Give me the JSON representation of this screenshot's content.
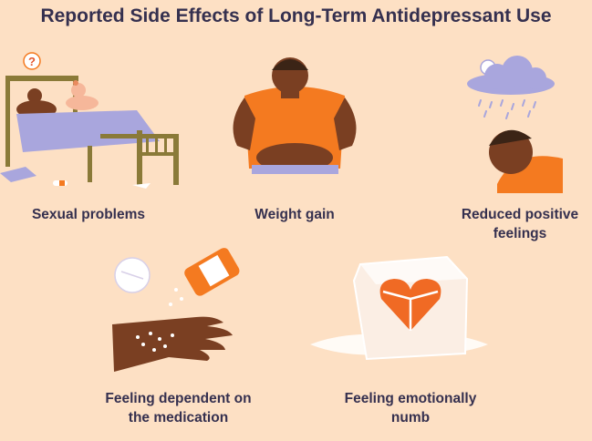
{
  "title": "Reported Side Effects of Long-Term Antidepressant Use",
  "effects": [
    {
      "label": "Sexual problems",
      "icon": "couple-in-bed-icon"
    },
    {
      "label": "Weight gain",
      "icon": "person-weight-gain-icon"
    },
    {
      "label_line1": "Reduced positive",
      "label_line2": "feelings",
      "icon": "rain-cloud-sad-person-icon"
    },
    {
      "label_line1": "Feeling dependent on",
      "label_line2": "the medication",
      "icon": "hand-with-pills-icon"
    },
    {
      "label_line1": "Feeling emotionally",
      "label_line2": "numb",
      "icon": "heart-in-ice-icon"
    }
  ],
  "colors": {
    "background": "#fde0c4",
    "text": "#35304f",
    "accent": "#f47a20",
    "skin": "#7a3f22",
    "lavender": "#a9a6dd",
    "bed": "#8a7a38"
  }
}
